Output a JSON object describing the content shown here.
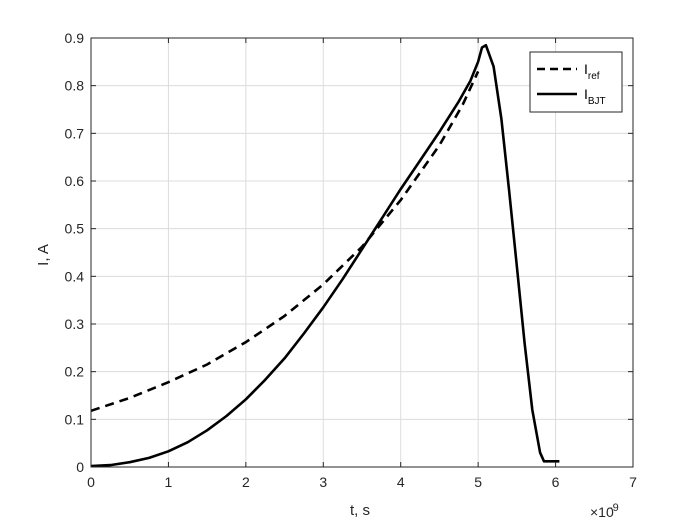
{
  "chart_data": {
    "type": "line",
    "xlabel": "t, s",
    "ylabel": "I, A",
    "x_exponent_label": "×10",
    "x_exponent_power": "-9",
    "xlim": [
      0,
      7
    ],
    "ylim": [
      0,
      0.9
    ],
    "x_ticks": [
      "0",
      "1",
      "2",
      "3",
      "4",
      "5",
      "6",
      "7"
    ],
    "y_ticks": [
      "0",
      "0.1",
      "0.2",
      "0.3",
      "0.4",
      "0.5",
      "0.6",
      "0.7",
      "0.8",
      "0.9"
    ],
    "grid": true,
    "legend_position": "top-right",
    "series": [
      {
        "name": "I",
        "name_sub": "ref",
        "style": "dashed",
        "color": "#000000",
        "x": [
          0,
          0.5,
          1,
          1.5,
          2,
          2.5,
          3,
          3.5,
          4,
          4.5,
          4.8,
          5.0
        ],
        "y": [
          0.118,
          0.145,
          0.178,
          0.215,
          0.262,
          0.317,
          0.383,
          0.462,
          0.56,
          0.675,
          0.76,
          0.83
        ]
      },
      {
        "name": "I",
        "name_sub": "BJT",
        "style": "solid",
        "color": "#000000",
        "x": [
          0,
          0.25,
          0.5,
          0.75,
          1,
          1.25,
          1.5,
          1.75,
          2,
          2.25,
          2.5,
          2.75,
          3,
          3.25,
          3.5,
          3.75,
          4,
          4.25,
          4.5,
          4.75,
          4.9,
          5.0,
          5.05,
          5.1,
          5.2,
          5.3,
          5.4,
          5.5,
          5.6,
          5.7,
          5.8,
          5.85,
          5.9,
          6.05
        ],
        "y": [
          0.002,
          0.004,
          0.01,
          0.019,
          0.033,
          0.052,
          0.077,
          0.107,
          0.142,
          0.183,
          0.228,
          0.28,
          0.335,
          0.394,
          0.457,
          0.52,
          0.583,
          0.643,
          0.703,
          0.767,
          0.81,
          0.85,
          0.88,
          0.885,
          0.84,
          0.73,
          0.58,
          0.42,
          0.26,
          0.12,
          0.03,
          0.012,
          0.012,
          0.012
        ]
      }
    ]
  }
}
